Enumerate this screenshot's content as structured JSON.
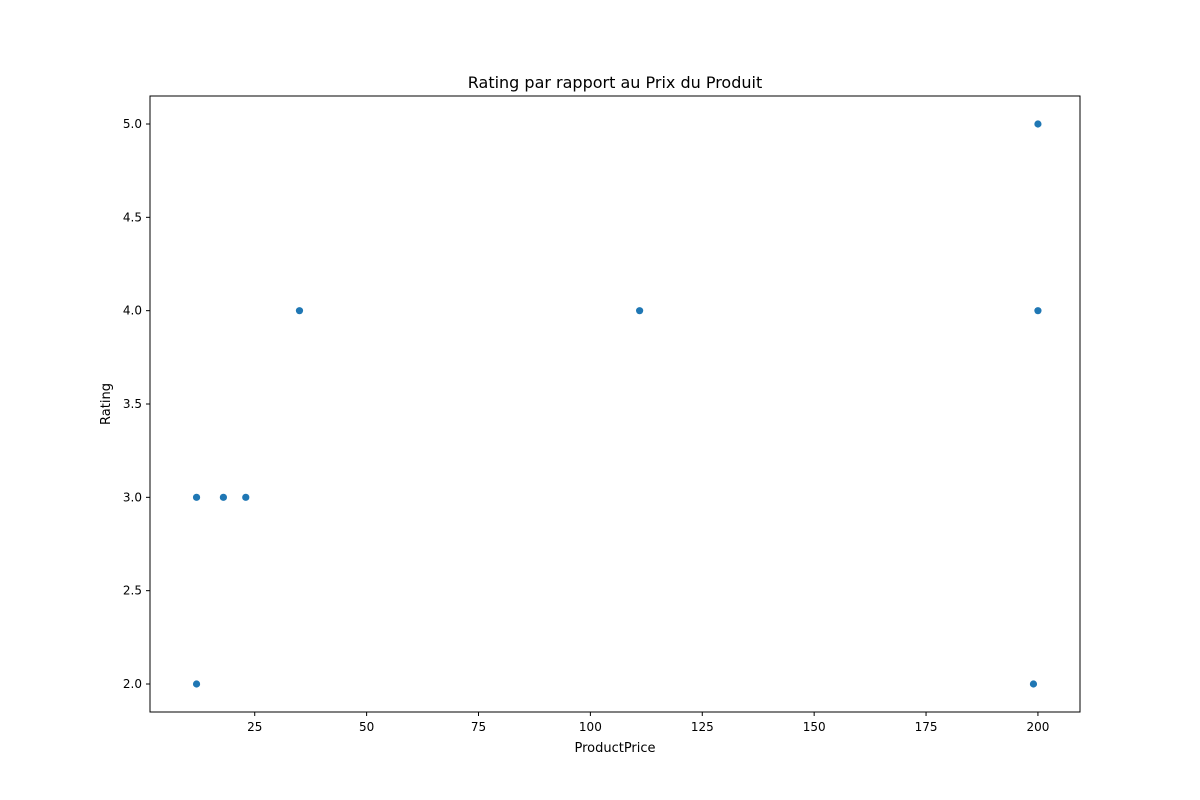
{
  "chart_data": {
    "type": "scatter",
    "title": "Rating par rapport au Prix du Produit",
    "xlabel": "ProductPrice",
    "ylabel": "Rating",
    "xlim": [
      1.6,
      209.4
    ],
    "ylim": [
      1.85,
      5.15
    ],
    "xticks": [
      25,
      50,
      75,
      100,
      125,
      150,
      175,
      200
    ],
    "xtick_labels": [
      "25",
      "50",
      "75",
      "100",
      "125",
      "150",
      "175",
      "200"
    ],
    "yticks": [
      2.0,
      2.5,
      3.0,
      3.5,
      4.0,
      4.5,
      5.0
    ],
    "ytick_labels": [
      "2.0",
      "2.5",
      "3.0",
      "3.5",
      "4.0",
      "4.5",
      "5.0"
    ],
    "grid": false,
    "marker_color": "#1f77b4",
    "points": [
      {
        "x": 12,
        "y": 3.0
      },
      {
        "x": 12,
        "y": 2.0
      },
      {
        "x": 18,
        "y": 3.0
      },
      {
        "x": 23,
        "y": 3.0
      },
      {
        "x": 35,
        "y": 4.0
      },
      {
        "x": 111,
        "y": 4.0
      },
      {
        "x": 199,
        "y": 2.0
      },
      {
        "x": 200,
        "y": 4.0
      },
      {
        "x": 200,
        "y": 5.0
      }
    ]
  }
}
